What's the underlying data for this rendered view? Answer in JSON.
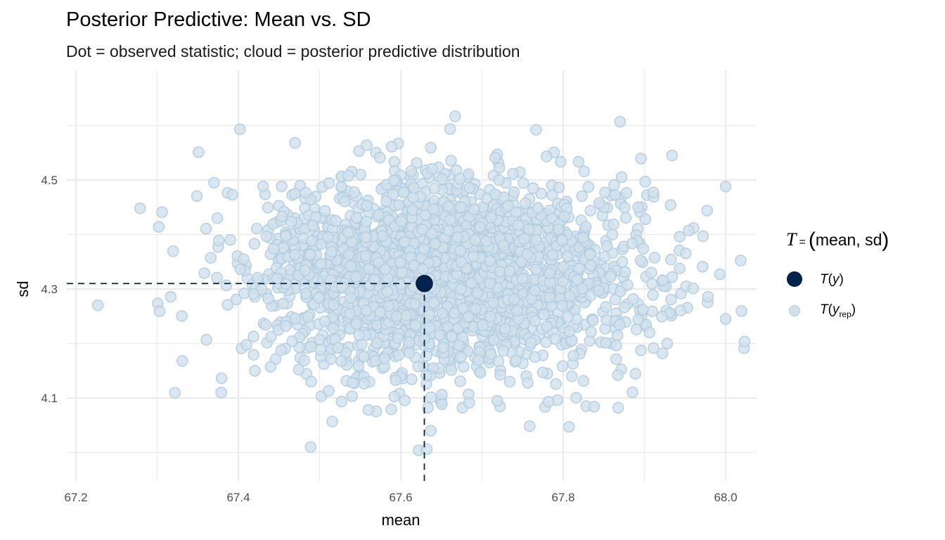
{
  "chart_data": {
    "type": "scatter",
    "title": "Posterior Predictive: Mean vs. SD",
    "subtitle": "Dot = observed statistic; cloud = posterior predictive distribution",
    "xlabel": "mean",
    "ylabel": "sd",
    "xlim": [
      67.18,
      68.04
    ],
    "ylim": [
      4.045,
      4.66
    ],
    "x_ticks": [
      67.2,
      67.4,
      67.6,
      67.8,
      68.0
    ],
    "x_tick_labels": [
      "67.2",
      "67.4",
      "67.6",
      "67.8",
      "68.0"
    ],
    "x_minor": [
      67.3,
      67.5,
      67.7,
      67.9
    ],
    "y_ticks": [
      4.1,
      4.3,
      4.5
    ],
    "y_tick_labels": [
      "4.1",
      "4.3",
      "4.5"
    ],
    "y_minor": [
      4.0,
      4.2,
      4.4,
      4.6
    ],
    "grid": true,
    "legend": {
      "position": "right",
      "title_var": "T",
      "title_eq": "=",
      "title_args": "mean, sd",
      "entries": [
        {
          "key": "observed",
          "label_fn": "T",
          "label_arg": "y",
          "label_sub": ""
        },
        {
          "key": "replicated",
          "label_fn": "T",
          "label_arg": "y",
          "label_sub": "rep"
        }
      ]
    },
    "observed": {
      "mean": 67.629,
      "sd": 4.31
    },
    "replicated": {
      "n_points": 2400,
      "seed": 7,
      "center": {
        "mean": 67.655,
        "sd": 4.325
      },
      "spread": {
        "mean": 0.118,
        "sd": 0.088
      },
      "notable_points": [
        {
          "mean": 67.227,
          "sd": 4.27
        },
        {
          "mean": 67.279,
          "sd": 4.448
        },
        {
          "mean": 67.306,
          "sd": 4.441
        },
        {
          "mean": 67.302,
          "sd": 4.414
        },
        {
          "mean": 67.303,
          "sd": 4.259
        },
        {
          "mean": 67.558,
          "sd": 4.564
        },
        {
          "mean": 67.87,
          "sd": 4.607
        },
        {
          "mean": 67.667,
          "sd": 4.617
        },
        {
          "mean": 67.402,
          "sd": 4.593
        },
        {
          "mean": 67.782,
          "sd": 4.093
        },
        {
          "mean": 67.838,
          "sd": 4.084
        },
        {
          "mean": 68.0,
          "sd": 4.488
        },
        {
          "mean": 67.993,
          "sd": 4.327
        },
        {
          "mean": 68.0,
          "sd": 4.245
        },
        {
          "mean": 67.96,
          "sd": 4.301
        },
        {
          "mean": 67.934,
          "sd": 4.545
        },
        {
          "mean": 67.901,
          "sd": 4.497
        },
        {
          "mean": 67.489,
          "sd": 4.01
        },
        {
          "mean": 67.622,
          "sd": 4.004
        },
        {
          "mean": 67.632,
          "sd": 4.006
        },
        {
          "mean": 67.331,
          "sd": 4.168
        },
        {
          "mean": 67.351,
          "sd": 4.551
        },
        {
          "mean": 67.37,
          "sd": 4.495
        }
      ]
    },
    "colors": {
      "observed_fill": "#03234f",
      "observed_stroke": "#011a3d",
      "replicated_fill": "#d1e1ec",
      "replicated_stroke": "#b3cde0",
      "grid": "#ebebeb",
      "reference_line": "#03234f"
    }
  }
}
